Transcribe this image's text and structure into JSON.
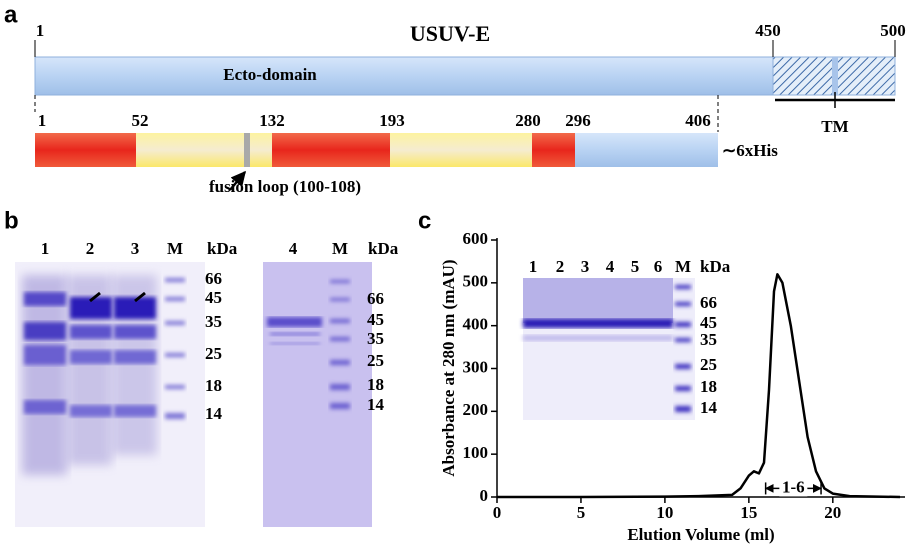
{
  "panel_a": {
    "label": "a",
    "title": "USUV-E",
    "top_positions": [
      1,
      450,
      500
    ],
    "domain": "Ecto-domain",
    "tm": "TM",
    "bottom_positions": [
      1,
      52,
      132,
      193,
      280,
      296,
      406
    ],
    "tag": "∼6xHis",
    "fusion_loop": "fusion loop (100-108)"
  },
  "panel_b": {
    "label": "b",
    "gel_1": {
      "lanes": [
        "1",
        "2",
        "3",
        "M"
      ],
      "unit": "kDa",
      "markers": [
        66,
        45,
        35,
        25,
        18,
        14
      ]
    },
    "gel_2": {
      "lanes": [
        "4",
        "M"
      ],
      "unit": "kDa",
      "markers": [
        66,
        45,
        35,
        25,
        18,
        14
      ]
    }
  },
  "panel_c": {
    "label": "c",
    "inset_gel": {
      "lanes": [
        "1",
        "2",
        "3",
        "4",
        "5",
        "6",
        "M"
      ],
      "unit": "kDa",
      "markers": [
        66,
        45,
        35,
        25,
        18,
        14
      ]
    }
  },
  "chart_data": {
    "type": "line",
    "x_label": "Elution Volume (ml)",
    "y_label": "Absorbance at 280 nm (mAU)",
    "x": [
      0,
      5,
      10,
      12,
      14,
      14.5,
      15,
      15.3,
      15.6,
      15.9,
      16.2,
      16.5,
      16.7,
      17,
      17.5,
      18,
      18.5,
      19,
      19.5,
      20,
      21,
      24
    ],
    "values": [
      0,
      0,
      1,
      2,
      5,
      20,
      50,
      60,
      55,
      80,
      250,
      480,
      520,
      500,
      400,
      270,
      140,
      60,
      20,
      8,
      2,
      0
    ],
    "color": "#000000",
    "xlim": [
      0,
      24.3
    ],
    "ylim": [
      0,
      600
    ],
    "xticks": [
      0,
      5,
      10,
      15,
      20
    ],
    "yticks": [
      0,
      100,
      200,
      300,
      400,
      500,
      600
    ],
    "grid": false,
    "annotation": {
      "label": "1-6",
      "x": [
        16,
        19.3
      ],
      "y": 20
    }
  }
}
